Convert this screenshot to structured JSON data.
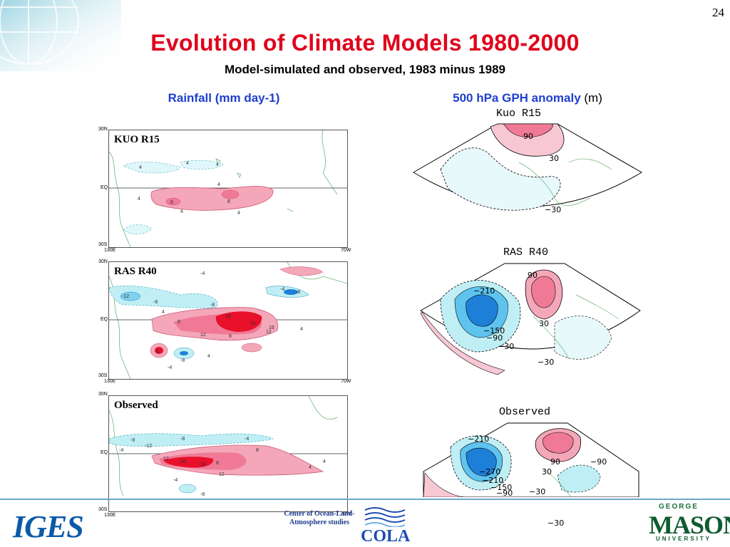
{
  "slide": {
    "page_number": "24",
    "title": "Evolution of Climate Models 1980-2000",
    "subtitle": "Model-simulated and observed, 1983 minus 1989"
  },
  "left_column": {
    "heading": "Rainfall (mm day-1)",
    "panels": [
      {
        "label": "KUO R15",
        "lat_top": "30N",
        "lat_mid": "EQ",
        "lat_bot": "30S",
        "lon_left": "130E",
        "lon_right": "70W",
        "contour_labels": [
          "4",
          "4",
          "4",
          "4",
          "8",
          "8",
          "4",
          "4",
          "4"
        ]
      },
      {
        "label": "RAS R40",
        "lat_top": "30N",
        "lat_mid": "EQ",
        "lat_bot": "30S",
        "lon_left": "130E",
        "lon_right": "70W",
        "contour_labels": [
          "-12",
          "-8",
          "-8",
          "-4",
          "-4",
          "-8",
          "4",
          "8",
          "12",
          "16",
          "16",
          "8",
          "12",
          "16",
          "4",
          "4",
          "-8",
          "-4",
          "8"
        ]
      },
      {
        "label": "Observed",
        "lat_top": "30N",
        "lat_mid": "EQ",
        "lat_bot": "30S",
        "lon_left": "130E",
        "lon_right": "70W",
        "contour_labels": [
          "-8",
          "-4",
          "-12",
          "-8",
          "-4",
          "12",
          "16",
          "16",
          "8",
          "12",
          "8",
          "4",
          "4",
          "-4",
          "-8"
        ]
      }
    ]
  },
  "right_column": {
    "heading_bold": "500 hPa GPH anomaly",
    "heading_unit": "(m)",
    "maps": [
      {
        "title": "Kuo R15",
        "labels": [
          "90",
          "30",
          "−30"
        ]
      },
      {
        "title": "RAS R40",
        "labels": [
          "−210",
          "90",
          "30",
          "−150",
          "−90",
          "−30",
          "−30"
        ]
      },
      {
        "title": "Observed",
        "labels": [
          "−210",
          "90",
          "−90",
          "−270",
          "−210",
          "30",
          "−150",
          "−90",
          "−30",
          "−30"
        ]
      }
    ]
  },
  "footer": {
    "logo_left": "IGES",
    "cola_text": "Center of Ocean-Land-Atmosphere studies",
    "cola_logo": "COLA",
    "gmu_george": "GEORGE",
    "gmu_mason": "MASON",
    "gmu_university": "UNIVERSITY"
  },
  "colors": {
    "title_red": "#e0001b",
    "heading_blue": "#1f3fcf",
    "positive_pink": "#f4a7b9",
    "strong_red": "#e8102a",
    "negative_cyan": "#bfeff4",
    "strong_blue": "#1e7fd8"
  }
}
